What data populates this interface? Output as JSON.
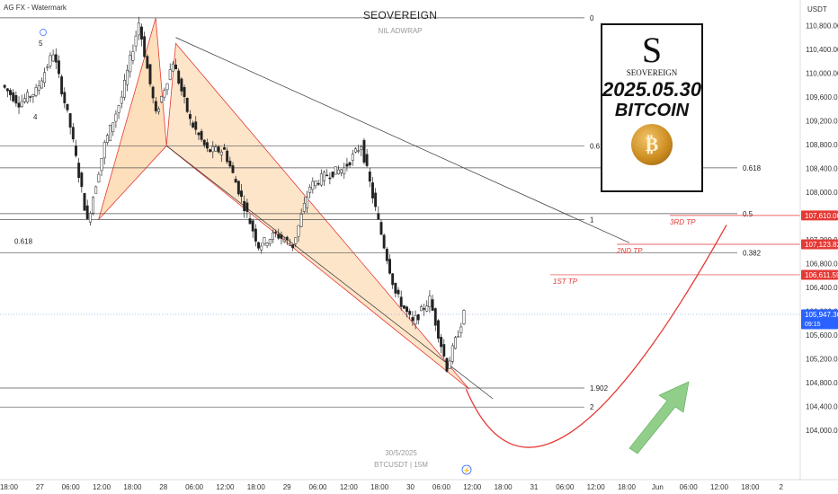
{
  "corner_label": "AG FX - Watermark",
  "title": "SEOVEREIGN",
  "watermark_top": "NIL ADWRAP",
  "watermark_date": "30/5/2025",
  "watermark_symbol": "BTCUSDT | 15M",
  "logo": {
    "brand": "SEOVEREIGN",
    "date": "2025.05.30",
    "symbol": "BITCOIN",
    "coin_icon": "bitcoin-coin-icon"
  },
  "axis": {
    "currency": "USDT",
    "price_ticks": [
      "110,800.00",
      "110,400.00",
      "110,000.00",
      "109,600.00",
      "109,200.00",
      "108,800.00",
      "108,400.00",
      "108,000.00",
      "107,600.00",
      "107,200.00",
      "106,800.00",
      "106,400.00",
      "106,000.00",
      "105,600.00",
      "105,200.00",
      "104,800.00",
      "104,400.00",
      "104,000.00"
    ],
    "time_ticks": [
      "18:00",
      "27",
      "06:00",
      "12:00",
      "18:00",
      "28",
      "06:00",
      "12:00",
      "18:00",
      "29",
      "06:00",
      "12:00",
      "18:00",
      "30",
      "06:00",
      "12:00",
      "18:00",
      "31",
      "06:00",
      "12:00",
      "18:00",
      "Jun",
      "06:00",
      "12:00",
      "18:00",
      "2"
    ]
  },
  "fib_levels": [
    {
      "label": "0",
      "price": 110930
    },
    {
      "label": "0.618",
      "price": 108780
    },
    {
      "label": "0.618",
      "price": 108410
    },
    {
      "label": "0.5",
      "price": 107640
    },
    {
      "label": "1",
      "price": 107540
    },
    {
      "label": "0.382",
      "price": 106980
    },
    {
      "label": "1.902",
      "price": 104710
    },
    {
      "label": "2",
      "price": 104390
    }
  ],
  "left_fib_label": "0.618",
  "wave_labels": [
    "5",
    "4"
  ],
  "price_tags": [
    {
      "value": "107,610.00",
      "color": "#e53935",
      "kind": "target"
    },
    {
      "value": "107,123.82",
      "color": "#e53935",
      "kind": "target"
    },
    {
      "value": "106,611.59",
      "color": "#e53935",
      "kind": "target"
    },
    {
      "value": "105,947.36",
      "sub": "09:15",
      "color": "#2962ff",
      "kind": "current"
    }
  ],
  "tp_labels": [
    {
      "text": "3RD TP",
      "price": 107610
    },
    {
      "text": "2ND TP",
      "price": 107124
    },
    {
      "text": "1ST TP",
      "price": 106612
    }
  ],
  "colors": {
    "up": "#ffffff",
    "down": "#222222",
    "projection": "#e53935",
    "arrow": "#7cc576",
    "triangle_fill": "#fbbf7a",
    "current": "#2962ff"
  },
  "chart_data": {
    "type": "candlestick",
    "symbol": "BTCUSDT",
    "timeframe": "15M",
    "ylim": [
      103900,
      111000
    ],
    "current_price": 105947.36,
    "close_path": [
      {
        "t": "26 18:00",
        "p": 109800
      },
      {
        "t": "27",
        "p": 109500
      },
      {
        "t": "27 03:00",
        "p": 109700
      },
      {
        "t": "27 06:00",
        "p": 110350
      },
      {
        "t": "27 09:00",
        "p": 109100
      },
      {
        "t": "27 12:00",
        "p": 107500
      },
      {
        "t": "27 15:00",
        "p": 108800
      },
      {
        "t": "27 18:00",
        "p": 109600
      },
      {
        "t": "28",
        "p": 110850
      },
      {
        "t": "28 03:00",
        "p": 109300
      },
      {
        "t": "28 06:00",
        "p": 110200
      },
      {
        "t": "28 09:00",
        "p": 109200
      },
      {
        "t": "28 12:00",
        "p": 108700
      },
      {
        "t": "28 18:00",
        "p": 108700
      },
      {
        "t": "29",
        "p": 107900
      },
      {
        "t": "29 03:00",
        "p": 107100
      },
      {
        "t": "29 06:00",
        "p": 107300
      },
      {
        "t": "29 09:00",
        "p": 107100
      },
      {
        "t": "29 12:00",
        "p": 108100
      },
      {
        "t": "29 15:00",
        "p": 108300
      },
      {
        "t": "29 18:00",
        "p": 108400
      },
      {
        "t": "30",
        "p": 108800
      },
      {
        "t": "30 03:00",
        "p": 107500
      },
      {
        "t": "30 06:00",
        "p": 106300
      },
      {
        "t": "30 09:00",
        "p": 105800
      },
      {
        "t": "30 10:30",
        "p": 106200
      },
      {
        "t": "30 12:00",
        "p": 105050
      },
      {
        "t": "30 13:30",
        "p": 105947
      }
    ]
  }
}
